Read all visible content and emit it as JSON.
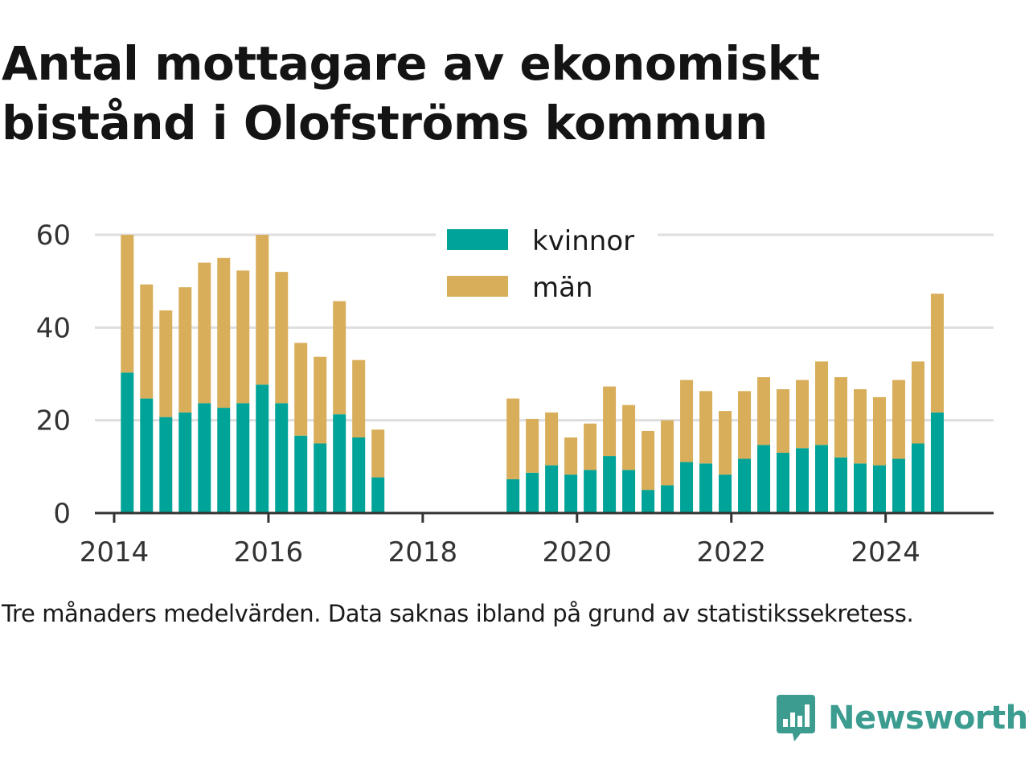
{
  "title": "Antal mottagare av ekonomiskt bistånd i Olofströms kommun",
  "footnote": "Tre månaders medelvärden. Data saknas ibland på grund av statistikssekretess.",
  "logo": {
    "text": "Newsworthy",
    "icon": "newsworthy-chart-bubble-icon"
  },
  "colors": {
    "kvinnor": "#00a397",
    "man": "#d9ae5a",
    "grid": "#dedede",
    "axis": "#333333",
    "logo": "#3b9c8f"
  },
  "chart_data": {
    "type": "bar",
    "stacked": true,
    "xlim": [
      2013.75,
      2025.4
    ],
    "ylim": [
      0,
      62
    ],
    "yticks": [
      0,
      20,
      40,
      60
    ],
    "xticks": [
      "2014",
      "2016",
      "2018",
      "2020",
      "2022",
      "2024"
    ],
    "grid": true,
    "legend_position": "top-center",
    "series": [
      {
        "name": "kvinnor",
        "x": [
          2014.17,
          2014.42,
          2014.67,
          2014.92,
          2015.17,
          2015.42,
          2015.67,
          2015.92,
          2016.17,
          2016.42,
          2016.67,
          2016.92,
          2017.17,
          2017.42,
          2019.17,
          2019.42,
          2019.67,
          2019.92,
          2020.17,
          2020.42,
          2020.67,
          2020.92,
          2021.17,
          2021.42,
          2021.67,
          2021.92,
          2022.17,
          2022.42,
          2022.67,
          2022.92,
          2023.17,
          2023.42,
          2023.67,
          2023.92,
          2024.17,
          2024.42,
          2024.67
        ],
        "values": [
          30.3,
          24.7,
          20.7,
          21.7,
          23.7,
          22.7,
          23.7,
          27.7,
          23.7,
          16.7,
          15.0,
          21.3,
          16.3,
          7.7,
          7.3,
          8.7,
          10.3,
          8.3,
          9.3,
          12.3,
          9.3,
          5.0,
          6.0,
          11.0,
          10.7,
          8.3,
          11.7,
          14.7,
          13.0,
          14.0,
          14.7,
          12.0,
          10.7,
          10.3,
          11.7,
          15.0,
          21.7
        ]
      },
      {
        "name": "män",
        "x": [
          2014.17,
          2014.42,
          2014.67,
          2014.92,
          2015.17,
          2015.42,
          2015.67,
          2015.92,
          2016.17,
          2016.42,
          2016.67,
          2016.92,
          2017.17,
          2017.42,
          2019.17,
          2019.42,
          2019.67,
          2019.92,
          2020.17,
          2020.42,
          2020.67,
          2020.92,
          2021.17,
          2021.42,
          2021.67,
          2021.92,
          2022.17,
          2022.42,
          2022.67,
          2022.92,
          2023.17,
          2023.42,
          2023.67,
          2023.92,
          2024.17,
          2024.42,
          2024.67
        ],
        "values": [
          29.7,
          24.6,
          23.0,
          27.0,
          30.3,
          32.3,
          28.6,
          32.3,
          28.3,
          20.0,
          18.7,
          24.4,
          16.7,
          10.3,
          17.4,
          11.6,
          11.4,
          8.0,
          10.0,
          15.0,
          14.0,
          12.7,
          14.0,
          17.7,
          15.6,
          13.7,
          14.6,
          14.6,
          13.7,
          14.7,
          18.0,
          17.3,
          16.0,
          14.7,
          17.0,
          17.7,
          25.6
        ]
      }
    ]
  }
}
